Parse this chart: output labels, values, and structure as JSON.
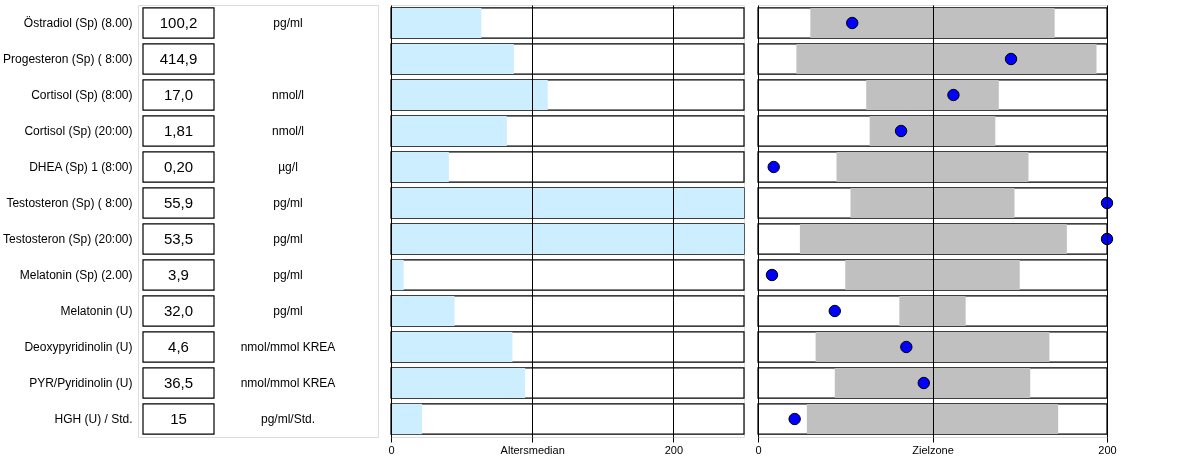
{
  "chart_data": [
    {
      "type": "other",
      "categories": [
        "Östradiol (Sp) (8.00)",
        "Progesteron (Sp) ( 8:00)",
        "Cortisol (Sp) (8:00)",
        "Cortisol (Sp) (20:00)",
        "DHEA (Sp) 1  (8:00)",
        "Testosteron (Sp) ( 8:00)",
        "Testosteron (Sp) (20:00)",
        "Melatonin (Sp) (2.00)",
        "Melatonin (U)",
        "Deoxypyridinolin (U)",
        "PYR/Pyridinolin (U)",
        "HGH (U) / Std."
      ],
      "cell_labels": [
        [
          "100,2",
          "pg/ml"
        ],
        [
          "414,9",
          null
        ],
        [
          "17,0",
          "nmol/l"
        ],
        [
          "1,81",
          "nmol/l"
        ],
        [
          "0,20",
          "µg/l"
        ],
        [
          "55,9",
          "pg/ml"
        ],
        [
          "53,5",
          "pg/ml"
        ],
        [
          "3,9",
          "pg/ml"
        ],
        [
          "32,0",
          "pg/ml"
        ],
        [
          "4,6",
          "nmol/mmol KREA"
        ],
        [
          "36,5",
          "nmol/mmol KREA"
        ],
        [
          "15",
          "pg/ml/Std."
        ]
      ]
    },
    {
      "type": "bar",
      "orientation": "horizontal",
      "tick_labels": "x",
      "grid": "x",
      "categories": [
        null,
        null,
        null,
        null,
        null,
        null,
        null,
        null,
        null,
        null,
        null,
        null
      ],
      "color": "#cceeff",
      "values": [
        64,
        87,
        111,
        82,
        41,
        250,
        250,
        9,
        45,
        86,
        95,
        22
      ],
      "xlim": [
        0,
        250
      ],
      "xticks": [
        0,
        {
          "value": 100,
          "label": "Altersmedian"
        },
        200
      ]
    },
    {
      "type": "bar",
      "orientation": "horizontal",
      "tick_labels": "x",
      "grid": "x",
      "categories": [
        null,
        null,
        null,
        null,
        null,
        null,
        null,
        null,
        null,
        null,
        null,
        null
      ],
      "series": [
        {
          "type": "bar",
          "color": "#c0c0c0",
          "base": [
            30,
            22,
            62,
            64,
            45,
            53,
            24,
            50,
            81,
            33,
            44,
            28
          ],
          "values": [
            140,
            172,
            76,
            72,
            110,
            94,
            153,
            100,
            38,
            134,
            112,
            144
          ]
        },
        {
          "type": "scatter",
          "color": "#0000ff",
          "values": [
            54,
            145,
            112,
            82,
            9,
            200,
            200,
            8,
            44,
            85,
            95,
            21
          ]
        }
      ],
      "xlim": [
        0,
        200
      ],
      "xticks": [
        0,
        {
          "value": 100,
          "label": "Zielzone"
        },
        200
      ]
    }
  ]
}
